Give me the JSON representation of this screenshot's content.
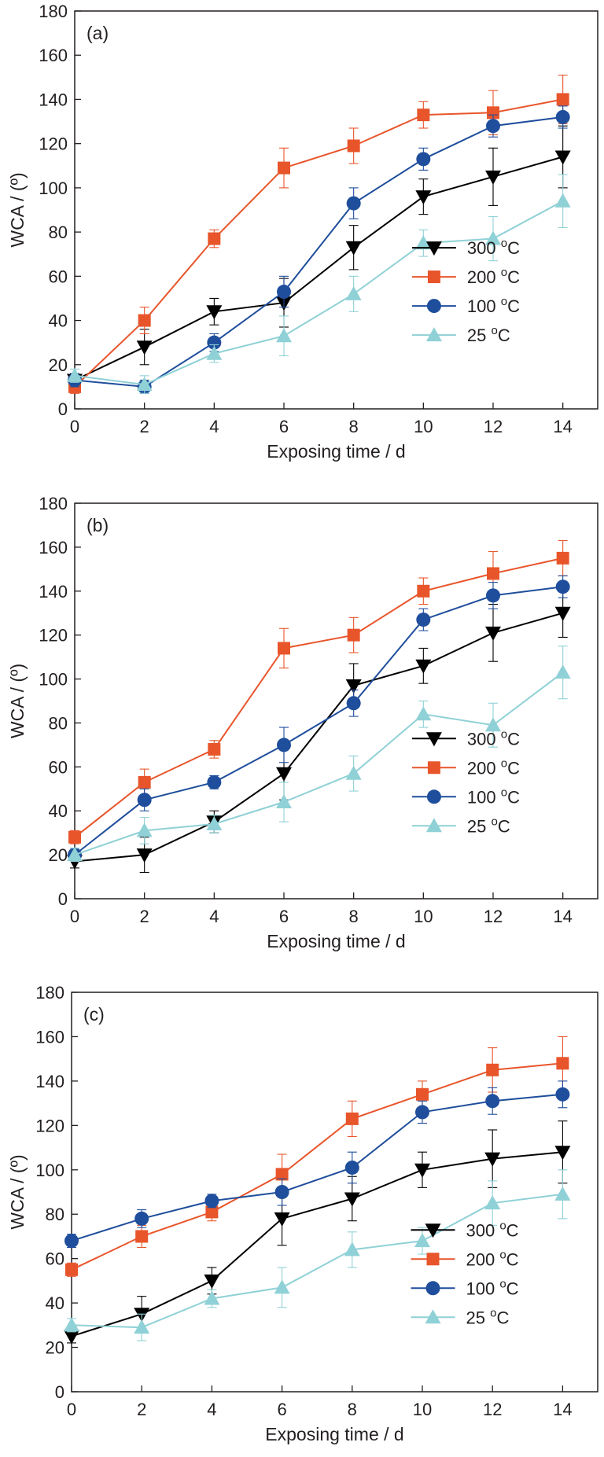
{
  "colors": {
    "300": "#000000",
    "200": "#e8552b",
    "100": "#1f4e9c",
    "25": "#8fd1d6"
  },
  "chart_data": [
    {
      "type": "line",
      "panel_label": "(a)",
      "xlabel": "Exposing time / d",
      "ylabel": "WCA / (º)",
      "xlim": [
        0,
        15
      ],
      "ylim": [
        0,
        180
      ],
      "xticks": [
        0,
        2,
        4,
        6,
        8,
        10,
        12,
        14
      ],
      "yticks": [
        0,
        20,
        40,
        60,
        80,
        100,
        120,
        140,
        160,
        180
      ],
      "x": [
        0,
        2,
        4,
        6,
        8,
        10,
        12,
        14
      ],
      "legend_position": "bottom-right",
      "series": [
        {
          "key": "300",
          "name": "300 ",
          "sup": "o",
          "suffix": "C",
          "marker": "triangle-down",
          "values": [
            13,
            28,
            44,
            48,
            73,
            96,
            105,
            114
          ],
          "err": [
            3,
            8,
            6,
            11,
            10,
            8,
            13,
            14
          ]
        },
        {
          "key": "200",
          "name": "200 ",
          "sup": "o",
          "suffix": "C",
          "marker": "square",
          "values": [
            10,
            40,
            77,
            109,
            119,
            133,
            134,
            140
          ],
          "err": [
            3,
            6,
            4,
            9,
            8,
            6,
            10,
            11
          ]
        },
        {
          "key": "100",
          "name": "100 ",
          "sup": "o",
          "suffix": "C",
          "marker": "circle",
          "values": [
            13,
            10,
            30,
            53,
            93,
            113,
            128,
            132
          ],
          "err": [
            3,
            3,
            4,
            7,
            7,
            5,
            5,
            5
          ]
        },
        {
          "key": "25",
          "name": "25 ",
          "sup": "o",
          "suffix": "C",
          "marker": "triangle-up",
          "values": [
            15,
            11,
            25,
            33,
            52,
            75,
            77,
            94
          ],
          "err": [
            3,
            4,
            4,
            9,
            8,
            6,
            10,
            12
          ]
        }
      ]
    },
    {
      "type": "line",
      "panel_label": "(b)",
      "xlabel": "Exposing time / d",
      "ylabel": "WCA / (º)",
      "xlim": [
        0,
        15
      ],
      "ylim": [
        0,
        180
      ],
      "xticks": [
        0,
        2,
        4,
        6,
        8,
        10,
        12,
        14
      ],
      "yticks": [
        0,
        20,
        40,
        60,
        80,
        100,
        120,
        140,
        160,
        180
      ],
      "x": [
        0,
        2,
        4,
        6,
        8,
        10,
        12,
        14
      ],
      "legend_position": "bottom-right",
      "series": [
        {
          "key": "300",
          "name": "300 ",
          "sup": "o",
          "suffix": "C",
          "marker": "triangle-down",
          "values": [
            17,
            20,
            35,
            57,
            97,
            106,
            121,
            130
          ],
          "err": [
            3,
            8,
            5,
            12,
            10,
            8,
            13,
            11
          ]
        },
        {
          "key": "200",
          "name": "200 ",
          "sup": "o",
          "suffix": "C",
          "marker": "square",
          "values": [
            28,
            53,
            68,
            114,
            120,
            140,
            148,
            155
          ],
          "err": [
            3,
            6,
            4,
            9,
            8,
            6,
            10,
            8
          ]
        },
        {
          "key": "100",
          "name": "100 ",
          "sup": "o",
          "suffix": "C",
          "marker": "circle",
          "values": [
            20,
            45,
            53,
            70,
            89,
            127,
            138,
            142
          ],
          "err": [
            3,
            5,
            3,
            8,
            6,
            5,
            6,
            5
          ]
        },
        {
          "key": "25",
          "name": "25 ",
          "sup": "o",
          "suffix": "C",
          "marker": "triangle-up",
          "values": [
            20,
            31,
            34,
            44,
            57,
            84,
            79,
            103
          ],
          "err": [
            3,
            6,
            4,
            9,
            8,
            6,
            10,
            12
          ]
        }
      ]
    },
    {
      "type": "line",
      "panel_label": "(c)",
      "xlabel": "Exposing time / d",
      "ylabel": "WCA / (º)",
      "xlim": [
        0,
        15
      ],
      "ylim": [
        0,
        180
      ],
      "xticks": [
        0,
        2,
        4,
        6,
        8,
        10,
        12,
        14
      ],
      "yticks": [
        0,
        20,
        40,
        60,
        80,
        100,
        120,
        140,
        160,
        180
      ],
      "x": [
        0,
        2,
        4,
        6,
        8,
        10,
        12,
        14
      ],
      "legend_position": "bottom-right",
      "series": [
        {
          "key": "300",
          "name": "300 ",
          "sup": "o",
          "suffix": "C",
          "marker": "triangle-down",
          "values": [
            25,
            35,
            50,
            78,
            87,
            100,
            105,
            108
          ],
          "err": [
            3,
            8,
            6,
            12,
            10,
            8,
            13,
            14
          ]
        },
        {
          "key": "200",
          "name": "200 ",
          "sup": "o",
          "suffix": "C",
          "marker": "square",
          "values": [
            55,
            70,
            81,
            98,
            123,
            134,
            145,
            148
          ],
          "err": [
            3,
            5,
            4,
            9,
            8,
            6,
            10,
            12
          ]
        },
        {
          "key": "100",
          "name": "100 ",
          "sup": "o",
          "suffix": "C",
          "marker": "circle",
          "values": [
            68,
            78,
            86,
            90,
            101,
            126,
            131,
            134
          ],
          "err": [
            3,
            4,
            3,
            6,
            7,
            5,
            6,
            6
          ]
        },
        {
          "key": "25",
          "name": "25 ",
          "sup": "o",
          "suffix": "C",
          "marker": "triangle-up",
          "values": [
            30,
            29,
            42,
            47,
            64,
            68,
            85,
            89
          ],
          "err": [
            3,
            6,
            4,
            9,
            8,
            6,
            10,
            11
          ]
        }
      ]
    }
  ]
}
